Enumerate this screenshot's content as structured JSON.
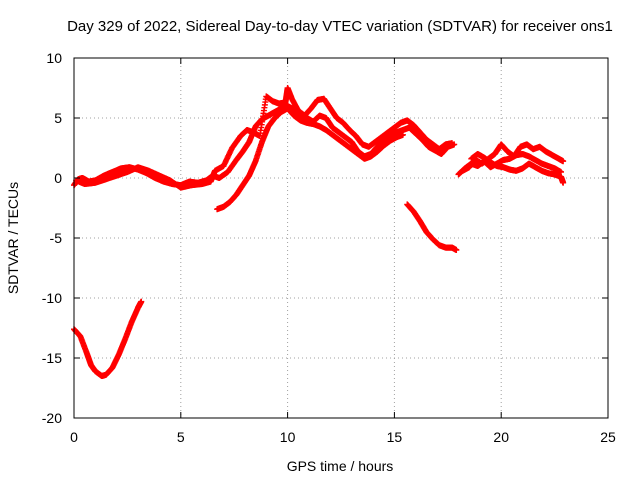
{
  "chart_data": {
    "type": "scatter",
    "title": "Day 329 of 2022, Sidereal Day-to-day VTEC variation (SDTVAR) for receiver ons1",
    "xlabel": "GPS time / hours",
    "ylabel": "SDTVAR / TECUs",
    "xlim": [
      0,
      25
    ],
    "ylim": [
      -20,
      10
    ],
    "xticks": [
      0,
      5,
      10,
      15,
      20,
      25
    ],
    "yticks": [
      -20,
      -15,
      -10,
      -5,
      0,
      5,
      10
    ],
    "grid": true,
    "marker": "+",
    "color": "#ff0000",
    "series": [
      {
        "name": "segment-1",
        "points": [
          [
            0.0,
            -12.6
          ],
          [
            0.3,
            -13.2
          ],
          [
            0.6,
            -14.6
          ],
          [
            0.8,
            -15.6
          ],
          [
            1.0,
            -16.1
          ],
          [
            1.3,
            -16.5
          ],
          [
            1.5,
            -16.4
          ],
          [
            1.8,
            -15.8
          ],
          [
            2.1,
            -14.7
          ],
          [
            2.4,
            -13.4
          ],
          [
            2.7,
            -12.0
          ],
          [
            3.0,
            -10.8
          ],
          [
            3.15,
            -10.3
          ]
        ]
      },
      {
        "name": "segment-2",
        "points": [
          [
            0.0,
            -0.6
          ],
          [
            0.2,
            -0.1
          ],
          [
            0.4,
            0.0
          ],
          [
            0.7,
            -0.3
          ],
          [
            1.0,
            -0.2
          ],
          [
            1.4,
            0.2
          ],
          [
            1.8,
            0.5
          ],
          [
            2.2,
            0.8
          ],
          [
            2.6,
            0.9
          ],
          [
            3.0,
            0.7
          ],
          [
            3.4,
            0.4
          ],
          [
            3.8,
            0.0
          ],
          [
            4.2,
            -0.3
          ],
          [
            4.6,
            -0.5
          ],
          [
            5.0,
            -0.6
          ],
          [
            5.4,
            -0.3
          ],
          [
            5.8,
            -0.4
          ],
          [
            6.2,
            -0.2
          ],
          [
            6.5,
            0.2
          ],
          [
            6.8,
            0.0
          ],
          [
            7.2,
            0.5
          ],
          [
            7.6,
            1.5
          ],
          [
            7.9,
            2.2
          ],
          [
            8.2,
            3.0
          ],
          [
            8.5,
            4.3
          ],
          [
            8.8,
            4.9
          ],
          [
            9.1,
            5.2
          ],
          [
            9.4,
            5.5
          ],
          [
            9.7,
            5.8
          ],
          [
            10.0,
            6.0
          ],
          [
            10.3,
            5.7
          ],
          [
            10.6,
            5.3
          ],
          [
            10.9,
            5.0
          ],
          [
            11.2,
            4.7
          ],
          [
            11.5,
            5.2
          ],
          [
            11.8,
            5.0
          ],
          [
            12.1,
            4.2
          ],
          [
            12.4,
            3.8
          ],
          [
            12.7,
            3.4
          ],
          [
            13.0,
            3.0
          ],
          [
            13.3,
            2.2
          ],
          [
            13.6,
            1.8
          ],
          [
            13.9,
            2.0
          ],
          [
            14.2,
            2.6
          ],
          [
            14.5,
            3.2
          ],
          [
            14.8,
            3.6
          ],
          [
            15.1,
            3.8
          ],
          [
            15.4,
            4.0
          ],
          [
            15.7,
            4.2
          ],
          [
            16.0,
            3.7
          ],
          [
            16.3,
            3.2
          ],
          [
            16.6,
            2.6
          ],
          [
            16.9,
            2.3
          ],
          [
            17.2,
            2.0
          ],
          [
            17.5,
            2.6
          ],
          [
            17.8,
            2.8
          ]
        ]
      },
      {
        "name": "segment-3",
        "points": [
          [
            0.1,
            -0.2
          ],
          [
            0.5,
            -0.5
          ],
          [
            1.0,
            -0.4
          ],
          [
            1.5,
            -0.1
          ],
          [
            2.0,
            0.2
          ],
          [
            2.5,
            0.5
          ],
          [
            3.0,
            0.9
          ],
          [
            3.5,
            0.6
          ],
          [
            4.0,
            0.2
          ],
          [
            4.5,
            -0.2
          ],
          [
            5.0,
            -0.8
          ],
          [
            5.5,
            -0.6
          ],
          [
            6.0,
            -0.5
          ],
          [
            6.4,
            -0.3
          ],
          [
            6.6,
            0.6
          ],
          [
            7.0,
            1.0
          ],
          [
            7.4,
            2.5
          ],
          [
            7.8,
            3.5
          ],
          [
            8.1,
            4.0
          ],
          [
            8.4,
            3.8
          ],
          [
            8.7,
            3.5
          ],
          [
            9.0,
            6.8
          ],
          [
            9.3,
            6.4
          ],
          [
            9.6,
            6.2
          ],
          [
            9.9,
            6.3
          ],
          [
            10.0,
            7.5
          ],
          [
            10.2,
            6.6
          ],
          [
            10.5,
            5.6
          ],
          [
            10.8,
            5.2
          ],
          [
            11.1,
            5.8
          ],
          [
            11.4,
            6.5
          ],
          [
            11.7,
            6.6
          ],
          [
            12.0,
            5.8
          ],
          [
            12.3,
            5.0
          ],
          [
            12.6,
            4.6
          ],
          [
            12.9,
            4.0
          ],
          [
            13.2,
            3.5
          ],
          [
            13.5,
            2.8
          ],
          [
            13.8,
            2.6
          ],
          [
            14.1,
            3.0
          ],
          [
            14.4,
            3.4
          ],
          [
            14.7,
            3.8
          ],
          [
            15.0,
            4.2
          ],
          [
            15.3,
            4.6
          ],
          [
            15.6,
            4.8
          ],
          [
            15.9,
            4.4
          ],
          [
            16.2,
            3.8
          ],
          [
            16.5,
            3.2
          ],
          [
            16.8,
            2.8
          ],
          [
            17.1,
            2.4
          ],
          [
            17.4,
            2.8
          ],
          [
            17.7,
            2.9
          ]
        ]
      },
      {
        "name": "segment-4",
        "points": [
          [
            6.7,
            -2.6
          ],
          [
            7.0,
            -2.4
          ],
          [
            7.3,
            -2.0
          ],
          [
            7.6,
            -1.4
          ],
          [
            7.9,
            -0.6
          ],
          [
            8.2,
            0.2
          ],
          [
            8.5,
            1.4
          ],
          [
            8.8,
            3.0
          ],
          [
            9.1,
            4.3
          ],
          [
            9.4,
            5.0
          ],
          [
            9.7,
            5.5
          ],
          [
            10.0,
            5.8
          ],
          [
            10.3,
            5.2
          ],
          [
            10.6,
            4.8
          ],
          [
            10.9,
            4.6
          ],
          [
            11.2,
            4.5
          ],
          [
            11.5,
            4.3
          ],
          [
            11.8,
            4.0
          ],
          [
            12.1,
            3.6
          ],
          [
            12.4,
            3.2
          ],
          [
            12.7,
            2.8
          ],
          [
            13.0,
            2.4
          ],
          [
            13.3,
            2.0
          ],
          [
            13.6,
            1.6
          ],
          [
            13.9,
            1.8
          ],
          [
            14.2,
            2.2
          ],
          [
            14.5,
            2.7
          ],
          [
            14.8,
            3.1
          ],
          [
            15.1,
            3.4
          ],
          [
            15.4,
            3.6
          ]
        ]
      },
      {
        "name": "segment-5",
        "points": [
          [
            15.6,
            -2.2
          ],
          [
            15.9,
            -2.8
          ],
          [
            16.2,
            -3.6
          ],
          [
            16.5,
            -4.5
          ],
          [
            16.8,
            -5.1
          ],
          [
            17.1,
            -5.6
          ],
          [
            17.4,
            -5.8
          ],
          [
            17.7,
            -5.8
          ],
          [
            17.9,
            -6.0
          ]
        ]
      },
      {
        "name": "segment-6",
        "points": [
          [
            18.0,
            0.3
          ],
          [
            18.3,
            0.8
          ],
          [
            18.6,
            1.2
          ],
          [
            18.9,
            1.0
          ],
          [
            19.2,
            1.4
          ],
          [
            19.5,
            0.9
          ],
          [
            19.8,
            1.2
          ],
          [
            20.1,
            1.5
          ],
          [
            20.4,
            1.6
          ],
          [
            20.7,
            1.9
          ],
          [
            21.0,
            2.0
          ],
          [
            21.3,
            1.8
          ],
          [
            21.6,
            1.5
          ],
          [
            21.9,
            1.2
          ],
          [
            22.2,
            1.0
          ],
          [
            22.5,
            0.8
          ],
          [
            22.8,
            0.5
          ]
        ]
      },
      {
        "name": "segment-7",
        "points": [
          [
            18.2,
            0.6
          ],
          [
            18.5,
            0.9
          ],
          [
            18.8,
            1.5
          ],
          [
            19.1,
            1.2
          ],
          [
            19.4,
            1.6
          ],
          [
            19.7,
            2.0
          ],
          [
            20.0,
            2.8
          ],
          [
            20.3,
            2.2
          ],
          [
            20.6,
            1.8
          ],
          [
            20.9,
            2.6
          ],
          [
            21.2,
            2.8
          ],
          [
            21.5,
            2.4
          ],
          [
            21.8,
            2.6
          ],
          [
            22.1,
            2.2
          ],
          [
            22.4,
            1.9
          ],
          [
            22.7,
            1.6
          ],
          [
            22.9,
            1.4
          ]
        ]
      },
      {
        "name": "segment-8",
        "points": [
          [
            18.6,
            1.6
          ],
          [
            18.9,
            2.0
          ],
          [
            19.2,
            1.7
          ],
          [
            19.5,
            1.3
          ],
          [
            19.8,
            1.0
          ],
          [
            20.1,
            0.9
          ],
          [
            20.4,
            0.7
          ],
          [
            20.7,
            0.6
          ],
          [
            21.0,
            0.8
          ],
          [
            21.3,
            1.2
          ],
          [
            21.6,
            0.9
          ],
          [
            21.9,
            0.6
          ],
          [
            22.2,
            0.4
          ],
          [
            22.5,
            0.3
          ],
          [
            22.8,
            0.1
          ],
          [
            22.9,
            -0.4
          ]
        ]
      }
    ]
  }
}
